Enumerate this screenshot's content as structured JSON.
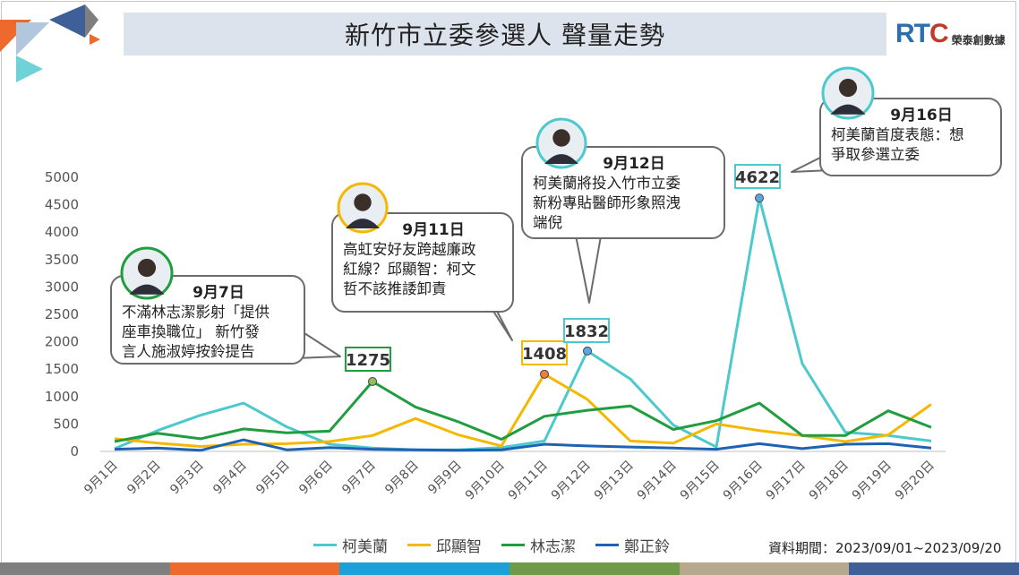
{
  "title": "新竹市立委參選人 聲量走勢",
  "logo": {
    "brand_r": "RT",
    "brand_c": "C",
    "subtitle": "榮泰創數據"
  },
  "period": "資料期間：2023/09/01~2023/09/20",
  "colors": {
    "柯美蘭": "#4cc9cc",
    "邱顯智": "#f5b800",
    "林志潔": "#1f9d3f",
    "鄭正鈴": "#1f62b4",
    "strip": [
      "#7f7f7f",
      "#ed6a2c",
      "#1ba1d8",
      "#6f9b49",
      "#b7a98d",
      "#3e5f98"
    ]
  },
  "chart_data": {
    "type": "line",
    "categories": [
      "9月1日",
      "9月2日",
      "9月3日",
      "9月4日",
      "9月5日",
      "9月6日",
      "9月7日",
      "9月8日",
      "9月9日",
      "9月10日",
      "9月11日",
      "9月12日",
      "9月13日",
      "9月14日",
      "9月15日",
      "9月16日",
      "9月17日",
      "9月18日",
      "9月19日",
      "9月20日"
    ],
    "ylim": [
      0,
      5000
    ],
    "yticks": [
      0,
      500,
      1000,
      1500,
      2000,
      2500,
      3000,
      3500,
      4000,
      4500,
      5000
    ],
    "grid": false,
    "legend_position": "bottom",
    "series": [
      {
        "name": "柯美蘭",
        "values": [
          50,
          380,
          660,
          880,
          450,
          130,
          60,
          30,
          30,
          70,
          190,
          1832,
          1320,
          480,
          80,
          4622,
          1600,
          350,
          290,
          190
        ]
      },
      {
        "name": "邱顯智",
        "values": [
          230,
          150,
          90,
          130,
          140,
          180,
          290,
          600,
          300,
          100,
          1408,
          950,
          190,
          150,
          500,
          380,
          290,
          180,
          300,
          860
        ]
      },
      {
        "name": "林志潔",
        "values": [
          180,
          330,
          230,
          410,
          340,
          370,
          1275,
          810,
          540,
          220,
          640,
          750,
          830,
          400,
          560,
          880,
          290,
          290,
          740,
          440
        ]
      },
      {
        "name": "鄭正鈴",
        "values": [
          40,
          60,
          20,
          210,
          30,
          70,
          40,
          30,
          20,
          30,
          130,
          100,
          80,
          60,
          40,
          140,
          50,
          130,
          140,
          60
        ]
      }
    ],
    "annotations": [
      {
        "series": "林志潔",
        "index": 6,
        "label": "1275",
        "date": "9月7日",
        "text": [
          "不滿林志潔影射「提供",
          "座車換職位」 新竹發",
          "言人施淑婷按鈴提告"
        ]
      },
      {
        "series": "邱顯智",
        "index": 10,
        "label": "1408",
        "date": "9月11日",
        "text": [
          "高虹安好友跨越廉政",
          "紅線？邱顯智：柯文",
          "哲不該推諉卸責"
        ]
      },
      {
        "series": "柯美蘭",
        "index": 11,
        "label": "1832",
        "date": "9月12日",
        "text": [
          "柯美蘭將投入竹市立委",
          "新粉專貼醫師形象照洩",
          "端倪"
        ]
      },
      {
        "series": "柯美蘭",
        "index": 15,
        "label": "4622",
        "date": "9月16日",
        "text": [
          "柯美蘭首度表態：想",
          "爭取參選立委"
        ]
      }
    ]
  }
}
